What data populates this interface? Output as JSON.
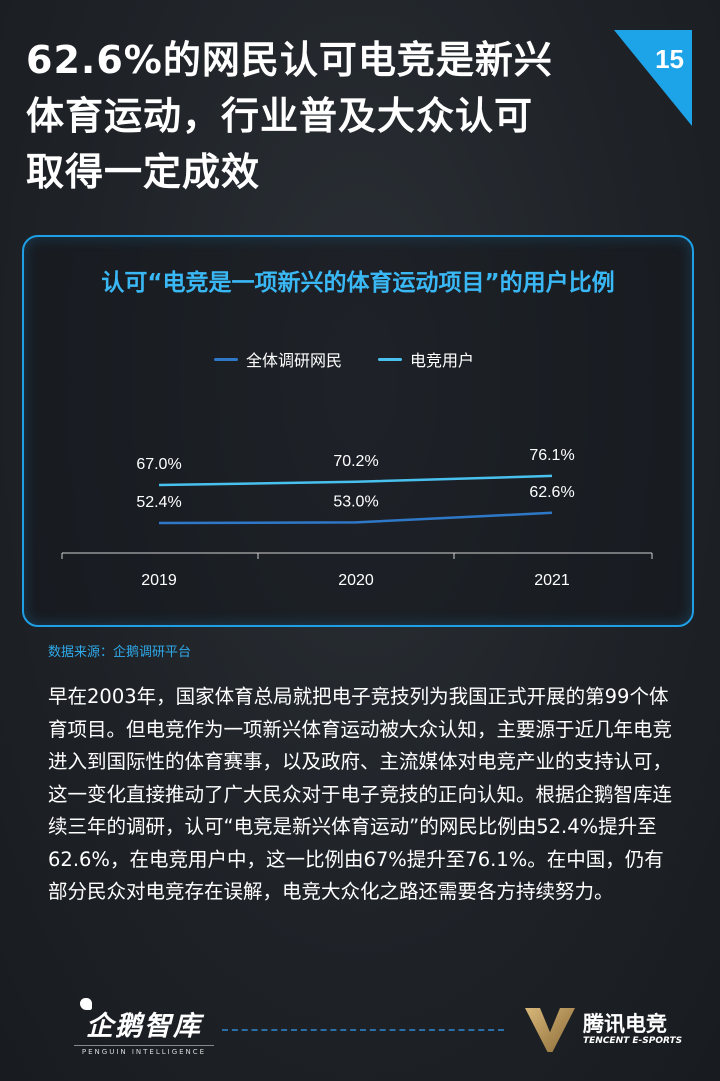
{
  "headline": {
    "lines": [
      "62.6%的网民认可电竞是新兴",
      "体育运动，行业普及大众认可",
      "取得一定成效"
    ]
  },
  "page_number": "15",
  "chart_data": {
    "type": "line",
    "title": "认可“电竞是一项新兴的体育运动项目”的用户比例",
    "categories": [
      "2019",
      "2020",
      "2021"
    ],
    "series": [
      {
        "name": "全体调研网民",
        "values": [
          52.4,
          53.0,
          62.6
        ],
        "labels": [
          "52.4%",
          "53.0%",
          "62.6%"
        ],
        "color": "#2f78c8"
      },
      {
        "name": "电竞用户",
        "values": [
          67.0,
          70.2,
          76.1
        ],
        "labels": [
          "67.0%",
          "70.2%",
          "76.1%"
        ],
        "color": "#49c1ee"
      }
    ],
    "xlabel": "",
    "ylabel": "",
    "ylim": [
      0,
      100
    ],
    "grid": false,
    "legend": "top-center"
  },
  "source": "数据来源：企鹅调研平台",
  "body": "早在2003年，国家体育总局就把电子竞技列为我国正式开展的第99个体育项目。但电竞作为一项新兴体育运动被大众认知，主要源于近几年电竞进入到国际性的体育赛事，以及政府、主流媒体对电竞产业的支持认可，这一变化直接推动了广大民众对于电子竞技的正向认知。根据企鹅智库连续三年的调研，认可“电竞是新兴体育运动”的网民比例由52.4%提升至62.6%，在电竞用户中，这一比例由67%提升至76.1%。在中国，仍有部分民众对电竞存在误解，电竞大众化之路还需要各方持续努力。",
  "footer": {
    "left_brand": "企鹅智库",
    "left_sub": "PENGUIN INTELLIGENCE",
    "right_brand": "腾讯电竞",
    "right_sub": "TENCENT E-SPORTS"
  }
}
